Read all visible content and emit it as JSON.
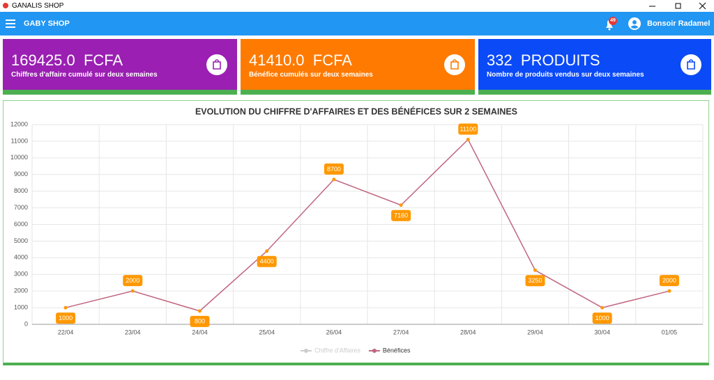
{
  "window": {
    "title": "GANALIS SHOP"
  },
  "app_bar": {
    "title": "GABY SHOP",
    "notifications": 49,
    "greeting": "Bonsoir Radamel"
  },
  "cards": [
    {
      "value": "169425.0  FCFA",
      "caption": "Chiffres d'affaire cumulé sur deux semaines"
    },
    {
      "value": "41410.0  FCFA",
      "caption": "Bénéfice cumulés sur deux semaines"
    },
    {
      "value": "332  PRODUITS",
      "caption": "Nombre de produits vendus sur deux semaines"
    }
  ],
  "chart_data": {
    "type": "line",
    "title": "EVOLUTION DU CHIFFRE D'AFFAIRES ET DES BÉNÉFICES SUR 2 SEMAINES",
    "categories": [
      "22/04",
      "23/04",
      "24/04",
      "25/04",
      "26/04",
      "27/04",
      "28/04",
      "29/04",
      "30/04",
      "01/05"
    ],
    "series": [
      {
        "name": "Chiffre d'Affaires",
        "color": "#cccccc",
        "hidden": true
      },
      {
        "name": "Bénéfices",
        "color": "#c0657f",
        "point_color": "#ff9800",
        "values": [
          1000,
          2000,
          800,
          4400,
          8700,
          7160,
          11100,
          3250,
          1000,
          2000
        ]
      }
    ],
    "ylim": [
      0,
      12000
    ],
    "yticks": [
      0,
      1000,
      2000,
      3000,
      4000,
      5000,
      6000,
      7000,
      8000,
      9000,
      10000,
      11000,
      12000
    ],
    "grid": true,
    "legend": "bottom"
  }
}
